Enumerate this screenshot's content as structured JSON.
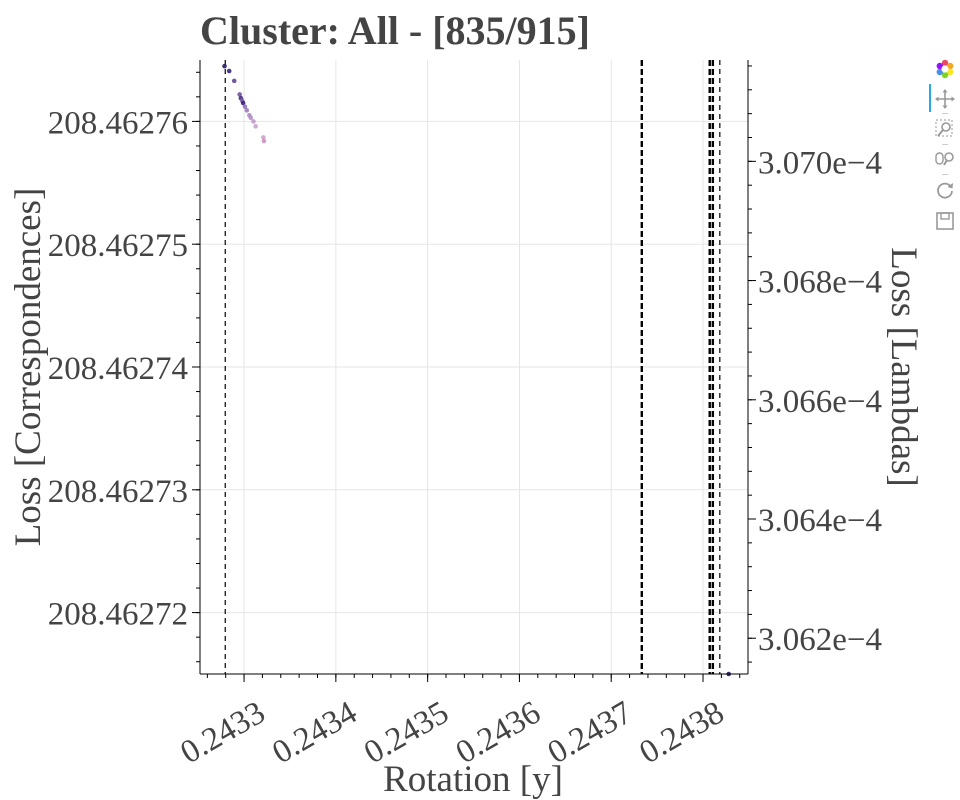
{
  "chart_data": {
    "type": "scatter",
    "title": "Cluster: All - [835/915]",
    "xlabel": "Rotation [y]",
    "ylabel": "Loss [Correspondences]",
    "y2label": "Loss [Lambdas]",
    "xlim": [
      0.243252,
      0.243849
    ],
    "ylim": [
      208.462715,
      208.462765
    ],
    "y2lim": [
      0.00030614,
      0.00030717
    ],
    "xticks": [
      0.2433,
      0.2434,
      0.2435,
      0.2436,
      0.2437,
      0.2438
    ],
    "xtick_labels": [
      "0.2433",
      "0.2434",
      "0.2435",
      "0.2436",
      "0.2437",
      "0.2438"
    ],
    "yticks": [
      208.46272,
      208.46273,
      208.46274,
      208.46275,
      208.46276
    ],
    "ytick_labels": [
      "208.46272",
      "208.46273",
      "208.46274",
      "208.46275",
      "208.46276"
    ],
    "y2ticks": [
      0.0003062,
      0.0003064,
      0.0003066,
      0.0003068,
      0.000307
    ],
    "y2tick_labels": [
      "3.062e−4",
      "3.064e−4",
      "3.066e−4",
      "3.068e−4",
      "3.070e−4"
    ],
    "grid": true,
    "vlines": [
      {
        "x": 0.2432795,
        "style": "dashed",
        "weight": "thin"
      },
      {
        "x": 0.2437333,
        "style": "dashed",
        "weight": "thick"
      },
      {
        "x": 0.2438073,
        "style": "dashed",
        "weight": "thick"
      },
      {
        "x": 0.2438107,
        "style": "dashed",
        "weight": "thick"
      },
      {
        "x": 0.2438183,
        "style": "dashed",
        "weight": "thin"
      }
    ],
    "series": [
      {
        "points": [
          {
            "x": 0.2432787,
            "y": 208.4627645,
            "color": "#1a0c5e"
          },
          {
            "x": 0.2432838,
            "y": 208.4627641,
            "color": "#2c1670"
          },
          {
            "x": 0.2432893,
            "y": 208.4627633,
            "color": "#5a3a8a"
          },
          {
            "x": 0.2432952,
            "y": 208.4627622,
            "color": "#6a4a96"
          },
          {
            "x": 0.2432965,
            "y": 208.4627619,
            "color": "#3b1c7a"
          },
          {
            "x": 0.2432978,
            "y": 208.4627617,
            "color": "#7b5aa8"
          },
          {
            "x": 0.243299,
            "y": 208.4627615,
            "color": "#2a146e"
          },
          {
            "x": 0.243301,
            "y": 208.4627612,
            "color": "#8d6cb4"
          },
          {
            "x": 0.243303,
            "y": 208.4627609,
            "color": "#9b76b8"
          },
          {
            "x": 0.2433058,
            "y": 208.4627605,
            "color": "#a884c0"
          },
          {
            "x": 0.2433073,
            "y": 208.4627603,
            "color": "#b08ac2"
          },
          {
            "x": 0.2433102,
            "y": 208.46276,
            "color": "#bb95c6"
          },
          {
            "x": 0.2433126,
            "y": 208.4627596,
            "color": "#c59fca"
          },
          {
            "x": 0.243321,
            "y": 208.4627587,
            "color": "#d39bc4"
          },
          {
            "x": 0.2433217,
            "y": 208.4627584,
            "color": "#c38dbe"
          }
        ]
      },
      {
        "axis": "y2",
        "points": [
          {
            "x": 0.243828,
            "y": 0.00030614,
            "color": "#1a0c5e"
          }
        ]
      }
    ],
    "toolbar": [
      "bokeh-logo-icon",
      "pan-icon",
      "box-zoom-icon",
      "wheel-zoom-icon",
      "reset-icon",
      "save-icon"
    ]
  }
}
